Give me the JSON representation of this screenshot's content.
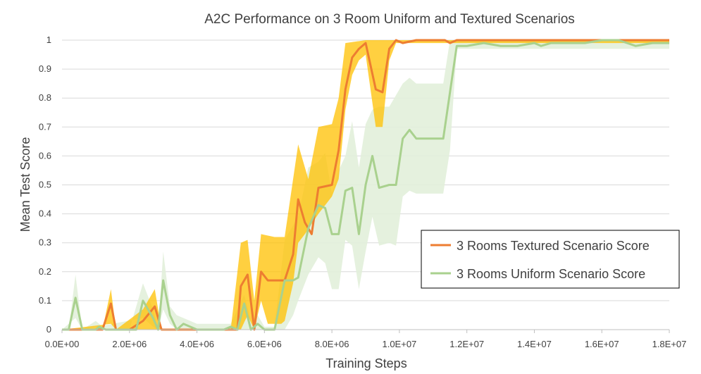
{
  "chart_data": {
    "type": "line",
    "title": "A2C Performance on 3 Room Uniform and Textured Scenarios",
    "xlabel": "Training Steps",
    "ylabel": "Mean Test Score",
    "xlim": [
      0,
      18000000
    ],
    "ylim": [
      0,
      1
    ],
    "x_ticks": [
      0,
      2000000,
      4000000,
      6000000,
      8000000,
      10000000,
      12000000,
      14000000,
      16000000,
      18000000
    ],
    "x_tick_labels": [
      "0.0E+00",
      "2.0E+06",
      "4.0E+06",
      "6.0E+06",
      "8.0E+06",
      "1.0E+07",
      "1.2E+07",
      "1.4E+07",
      "1.6E+07",
      "1.8E+07"
    ],
    "y_ticks": [
      0,
      0.1,
      0.2,
      0.3,
      0.4,
      0.5,
      0.6,
      0.7,
      0.8,
      0.9,
      1
    ],
    "y_tick_labels": [
      "0",
      "0.1",
      "0.2",
      "0.3",
      "0.4",
      "0.5",
      "0.6",
      "0.7",
      "0.8",
      "0.9",
      "1"
    ],
    "grid": "horizontal",
    "legend_position": "right",
    "series": [
      {
        "name": "3 Rooms Textured Scenario Score",
        "color": "#ED7D31",
        "band_color": "#FFC000",
        "points": [
          [
            0,
            0
          ],
          [
            400000,
            0
          ],
          [
            800000,
            0
          ],
          [
            1000000,
            0
          ],
          [
            1200000,
            0
          ],
          [
            1450000,
            0.09
          ],
          [
            1600000,
            0
          ],
          [
            2000000,
            0
          ],
          [
            2400000,
            0.03
          ],
          [
            2750000,
            0.08
          ],
          [
            2950000,
            0
          ],
          [
            3500000,
            0
          ],
          [
            4000000,
            0
          ],
          [
            4500000,
            0
          ],
          [
            5000000,
            0
          ],
          [
            5200000,
            0
          ],
          [
            5300000,
            0.15
          ],
          [
            5500000,
            0.19
          ],
          [
            5700000,
            0
          ],
          [
            5900000,
            0.2
          ],
          [
            6100000,
            0.17
          ],
          [
            6500000,
            0.17
          ],
          [
            6600000,
            0.17
          ],
          [
            6850000,
            0.26
          ],
          [
            7000000,
            0.45
          ],
          [
            7200000,
            0.37
          ],
          [
            7400000,
            0.33
          ],
          [
            7600000,
            0.49
          ],
          [
            8000000,
            0.5
          ],
          [
            8200000,
            0.62
          ],
          [
            8400000,
            0.83
          ],
          [
            8600000,
            0.94
          ],
          [
            8800000,
            0.97
          ],
          [
            9000000,
            0.99
          ],
          [
            9300000,
            0.83
          ],
          [
            9500000,
            0.82
          ],
          [
            9700000,
            0.97
          ],
          [
            9900000,
            1
          ],
          [
            10100000,
            0.99
          ],
          [
            10500000,
            1
          ],
          [
            11000000,
            1
          ],
          [
            11350000,
            1
          ],
          [
            11500000,
            0.99
          ],
          [
            11700000,
            1
          ],
          [
            12500000,
            1
          ],
          [
            14000000,
            1
          ],
          [
            16000000,
            1
          ],
          [
            18000000,
            1
          ]
        ],
        "band_upper": [
          [
            0,
            0
          ],
          [
            1200000,
            0
          ],
          [
            1450000,
            0.14
          ],
          [
            1600000,
            0
          ],
          [
            2400000,
            0.07
          ],
          [
            2750000,
            0.14
          ],
          [
            2950000,
            0
          ],
          [
            5000000,
            0
          ],
          [
            5300000,
            0.3
          ],
          [
            5500000,
            0.31
          ],
          [
            5700000,
            0.1
          ],
          [
            5900000,
            0.33
          ],
          [
            6300000,
            0.32
          ],
          [
            6600000,
            0.32
          ],
          [
            7000000,
            0.64
          ],
          [
            7300000,
            0.52
          ],
          [
            7600000,
            0.7
          ],
          [
            8000000,
            0.71
          ],
          [
            8200000,
            0.8
          ],
          [
            8400000,
            0.99
          ],
          [
            9000000,
            1
          ],
          [
            9300000,
            1
          ],
          [
            9500000,
            1
          ],
          [
            11500000,
            1
          ],
          [
            18000000,
            1
          ]
        ],
        "band_lower": [
          [
            0,
            0
          ],
          [
            1450000,
            0.02
          ],
          [
            1600000,
            0
          ],
          [
            5300000,
            0
          ],
          [
            5500000,
            0.05
          ],
          [
            5700000,
            0
          ],
          [
            5900000,
            0.1
          ],
          [
            6100000,
            0.02
          ],
          [
            6500000,
            0.02
          ],
          [
            6600000,
            0.03
          ],
          [
            6850000,
            0.16
          ],
          [
            7000000,
            0.3
          ],
          [
            7200000,
            0.33
          ],
          [
            7600000,
            0.4
          ],
          [
            8000000,
            0.46
          ],
          [
            8200000,
            0.52
          ],
          [
            8400000,
            0.76
          ],
          [
            8600000,
            0.88
          ],
          [
            8800000,
            0.93
          ],
          [
            9000000,
            0.95
          ],
          [
            9300000,
            0.7
          ],
          [
            9500000,
            0.7
          ],
          [
            9700000,
            0.93
          ],
          [
            9900000,
            0.99
          ],
          [
            18000000,
            0.99
          ]
        ]
      },
      {
        "name": "3 Rooms Uniform Scenario Score",
        "color": "#A9D18E",
        "band_color": "#E2EFDA",
        "points": [
          [
            0,
            0
          ],
          [
            200000,
            0
          ],
          [
            400000,
            0.11
          ],
          [
            600000,
            0
          ],
          [
            1000000,
            0
          ],
          [
            1100000,
            0.01
          ],
          [
            1300000,
            0
          ],
          [
            1800000,
            0
          ],
          [
            2200000,
            0
          ],
          [
            2400000,
            0.1
          ],
          [
            2700000,
            0.04
          ],
          [
            2850000,
            0
          ],
          [
            3000000,
            0.17
          ],
          [
            3200000,
            0.05
          ],
          [
            3400000,
            0
          ],
          [
            3600000,
            0.02
          ],
          [
            4000000,
            0
          ],
          [
            4500000,
            0
          ],
          [
            4800000,
            0
          ],
          [
            5000000,
            0.01
          ],
          [
            5200000,
            0
          ],
          [
            5400000,
            0.09
          ],
          [
            5600000,
            0
          ],
          [
            5800000,
            0.02
          ],
          [
            6000000,
            0
          ],
          [
            6300000,
            0
          ],
          [
            6600000,
            0.17
          ],
          [
            6850000,
            0.17
          ],
          [
            7000000,
            0.18
          ],
          [
            7300000,
            0.35
          ],
          [
            7600000,
            0.43
          ],
          [
            7800000,
            0.42
          ],
          [
            8000000,
            0.33
          ],
          [
            8200000,
            0.33
          ],
          [
            8400000,
            0.48
          ],
          [
            8600000,
            0.49
          ],
          [
            8800000,
            0.33
          ],
          [
            9000000,
            0.5
          ],
          [
            9200000,
            0.6
          ],
          [
            9400000,
            0.49
          ],
          [
            9700000,
            0.5
          ],
          [
            9900000,
            0.5
          ],
          [
            10100000,
            0.66
          ],
          [
            10300000,
            0.69
          ],
          [
            10500000,
            0.66
          ],
          [
            11300000,
            0.66
          ],
          [
            11500000,
            0.82
          ],
          [
            11700000,
            0.98
          ],
          [
            12000000,
            0.98
          ],
          [
            12500000,
            0.99
          ],
          [
            13000000,
            0.98
          ],
          [
            13500000,
            0.98
          ],
          [
            14000000,
            0.99
          ],
          [
            14200000,
            0.98
          ],
          [
            14500000,
            0.99
          ],
          [
            15000000,
            0.99
          ],
          [
            15500000,
            0.99
          ],
          [
            16000000,
            1
          ],
          [
            16500000,
            1
          ],
          [
            17000000,
            0.98
          ],
          [
            17500000,
            0.99
          ],
          [
            18000000,
            0.99
          ]
        ],
        "band_upper": [
          [
            0,
            0
          ],
          [
            200000,
            0
          ],
          [
            400000,
            0.19
          ],
          [
            600000,
            0
          ],
          [
            1000000,
            0.03
          ],
          [
            1300000,
            0
          ],
          [
            2000000,
            0
          ],
          [
            2400000,
            0.16
          ],
          [
            2700000,
            0.07
          ],
          [
            2850000,
            0
          ],
          [
            3000000,
            0.27
          ],
          [
            3200000,
            0.08
          ],
          [
            3400000,
            0.05
          ],
          [
            3600000,
            0.04
          ],
          [
            4000000,
            0.02
          ],
          [
            5000000,
            0.02
          ],
          [
            5400000,
            0.12
          ],
          [
            5600000,
            0.03
          ],
          [
            5800000,
            0.05
          ],
          [
            6000000,
            0.01
          ],
          [
            6300000,
            0.01
          ],
          [
            6600000,
            0.31
          ],
          [
            7000000,
            0.39
          ],
          [
            7300000,
            0.56
          ],
          [
            7600000,
            0.58
          ],
          [
            7800000,
            0.61
          ],
          [
            8000000,
            0.47
          ],
          [
            8200000,
            0.55
          ],
          [
            8400000,
            0.6
          ],
          [
            8600000,
            0.72
          ],
          [
            8800000,
            0.56
          ],
          [
            9000000,
            0.71
          ],
          [
            9200000,
            0.76
          ],
          [
            9400000,
            0.77
          ],
          [
            9700000,
            0.77
          ],
          [
            10100000,
            0.85
          ],
          [
            10300000,
            0.87
          ],
          [
            10500000,
            0.85
          ],
          [
            11300000,
            0.85
          ],
          [
            11500000,
            1
          ],
          [
            18000000,
            1
          ]
        ],
        "band_lower": [
          [
            0,
            0
          ],
          [
            400000,
            0.04
          ],
          [
            600000,
            0
          ],
          [
            2400000,
            0.04
          ],
          [
            2700000,
            0.01
          ],
          [
            2850000,
            0
          ],
          [
            3000000,
            0.07
          ],
          [
            3200000,
            0.02
          ],
          [
            3400000,
            0
          ],
          [
            6600000,
            0
          ],
          [
            6850000,
            0.05
          ],
          [
            7000000,
            0.1
          ],
          [
            7300000,
            0.19
          ],
          [
            7600000,
            0.25
          ],
          [
            7800000,
            0.23
          ],
          [
            8000000,
            0.14
          ],
          [
            8200000,
            0.14
          ],
          [
            8400000,
            0.31
          ],
          [
            8600000,
            0.29
          ],
          [
            8800000,
            0.14
          ],
          [
            9000000,
            0.27
          ],
          [
            9200000,
            0.39
          ],
          [
            9400000,
            0.29
          ],
          [
            9700000,
            0.3
          ],
          [
            9900000,
            0.29
          ],
          [
            10100000,
            0.46
          ],
          [
            10300000,
            0.48
          ],
          [
            10500000,
            0.47
          ],
          [
            11300000,
            0.47
          ],
          [
            11500000,
            0.62
          ],
          [
            11700000,
            0.97
          ],
          [
            18000000,
            0.97
          ]
        ]
      }
    ]
  }
}
